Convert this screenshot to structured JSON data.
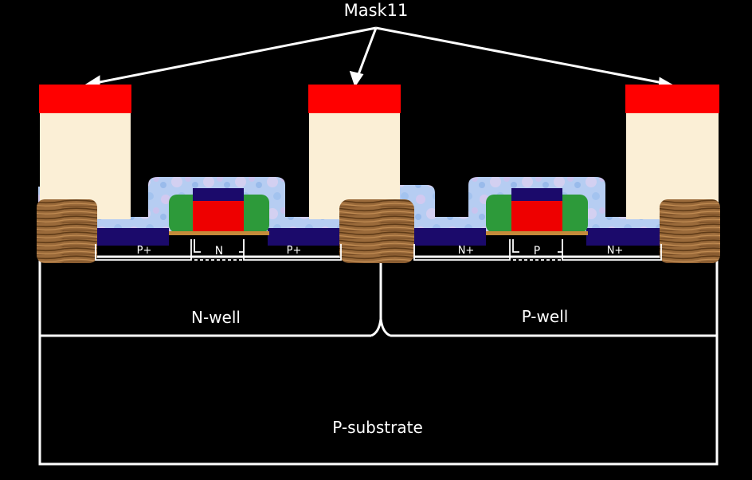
{
  "diagram": {
    "mask_label": "Mask11",
    "regions": {
      "nwell": "N-well",
      "pwell": "P-well",
      "substrate": "P-substrate"
    },
    "diffusions": {
      "p1": "P+",
      "n_channel": "N",
      "p2": "P+",
      "n1": "N+",
      "p_channel": "P",
      "n2": "N+"
    }
  },
  "colors": {
    "background": "#000000",
    "outline": "#ffffff",
    "mask_metal": "#ff0000",
    "via_fill": "#fbefd6",
    "dielectric": "#a9c6f0",
    "diffusion_dark": "#1b0a6b",
    "gate_poly": "#ee0000",
    "spacer_green": "#2d9a3a",
    "field_oxide": "#9a6a3a"
  }
}
